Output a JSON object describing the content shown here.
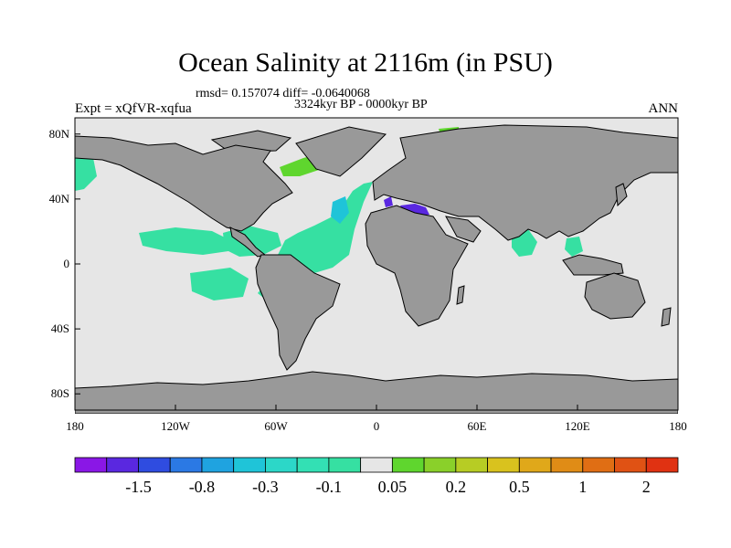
{
  "title": "Ocean Salinity at 2116m (in PSU)",
  "stats": "rmsd= 0.157074  diff= -0.0640068",
  "period": "3324kyr BP - 0000kyr BP",
  "experiment": "Expt = xQfVR-xqfua",
  "season": "ANN",
  "map": {
    "projection": "cylindrical-equidistant",
    "lon_range": [
      -180,
      180
    ],
    "lat_range": [
      -90,
      90
    ],
    "land_color": "#999999",
    "ocean_neutral_color": "#e6e6e6",
    "x_ticks": [
      {
        "lon": -180,
        "label": "180"
      },
      {
        "lon": -120,
        "label": "120W"
      },
      {
        "lon": -60,
        "label": "60W"
      },
      {
        "lon": 0,
        "label": "0"
      },
      {
        "lon": 60,
        "label": "60E"
      },
      {
        "lon": 120,
        "label": "120E"
      },
      {
        "lon": 180,
        "label": "180"
      }
    ],
    "y_ticks": [
      {
        "lat": 80,
        "label": "80N"
      },
      {
        "lat": 40,
        "label": "40N"
      },
      {
        "lat": 0,
        "label": "0"
      },
      {
        "lat": -40,
        "label": "40S"
      },
      {
        "lat": -80,
        "label": "80S"
      }
    ]
  },
  "colorbar": {
    "colors": [
      "#8a17e6",
      "#5a28e0",
      "#2f4ce0",
      "#2b79e4",
      "#1fa3e0",
      "#1fc4d8",
      "#2cd7c8",
      "#33e0b4",
      "#36e0a2",
      "#e6e6e6",
      "#5fd62e",
      "#8ad02a",
      "#b7cc24",
      "#d9c21e",
      "#e0a81a",
      "#e08c16",
      "#e06e14",
      "#e05214",
      "#e03212"
    ],
    "labels": [
      "-1.5",
      "-0.8",
      "-0.3",
      "-0.1",
      "0.05",
      "0.2",
      "0.5",
      "1",
      "2"
    ]
  }
}
